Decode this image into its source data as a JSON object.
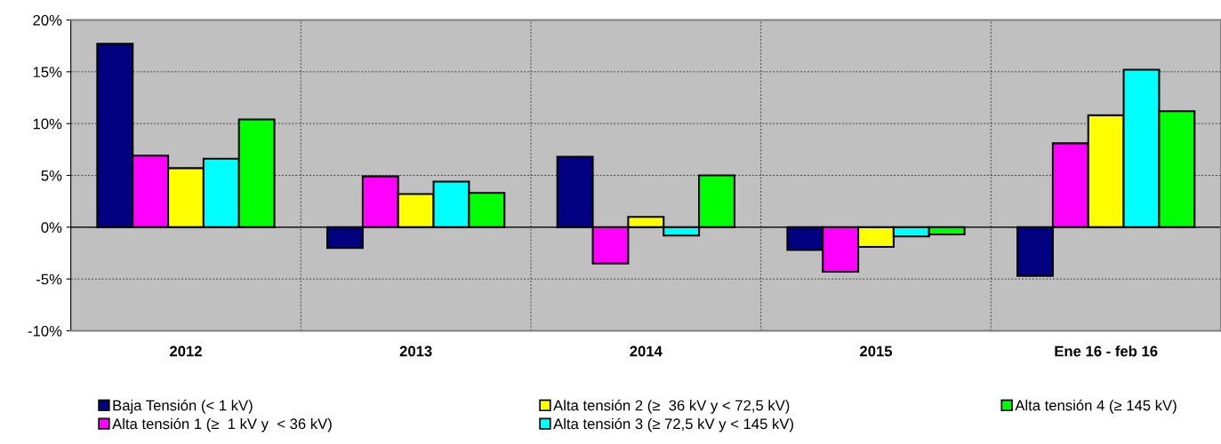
{
  "chart_data": {
    "type": "bar",
    "categories": [
      "2012",
      "2013",
      "2014",
      "2015",
      "Ene 16 - feb 16"
    ],
    "series": [
      {
        "name": "Baja Tensión (< 1 kV)",
        "color": "#000080",
        "values": [
          17.7,
          -2.0,
          6.8,
          -2.2,
          -4.7
        ]
      },
      {
        "name": "Alta tensión 1 (≥  1 kV y  < 36 kV)",
        "color": "#ff00ff",
        "values": [
          6.9,
          4.9,
          -3.5,
          -4.3,
          8.1
        ]
      },
      {
        "name": "Alta tensión 2 (≥  36 kV y < 72,5 kV)",
        "color": "#ffff00",
        "values": [
          5.7,
          3.2,
          1.0,
          -1.9,
          10.8
        ]
      },
      {
        "name": "Alta tensión 3 (≥ 72,5 kV y < 145 kV)",
        "color": "#00ffff",
        "values": [
          6.6,
          4.4,
          -0.8,
          -0.9,
          15.2
        ]
      },
      {
        "name": "Alta tensión 4 (≥ 145 kV)",
        "color": "#00ff00",
        "values": [
          10.4,
          3.3,
          5.0,
          -0.7,
          11.2
        ]
      }
    ],
    "ylim": [
      -10,
      20
    ],
    "yticks": [
      {
        "value": -10,
        "label": "-10%"
      },
      {
        "value": -5,
        "label": "-5%"
      },
      {
        "value": 0,
        "label": "0%"
      },
      {
        "value": 5,
        "label": "5%"
      },
      {
        "value": 10,
        "label": "10%"
      },
      {
        "value": 15,
        "label": "15%"
      },
      {
        "value": 20,
        "label": "20%"
      }
    ],
    "grid": true,
    "legend": "bottom"
  }
}
